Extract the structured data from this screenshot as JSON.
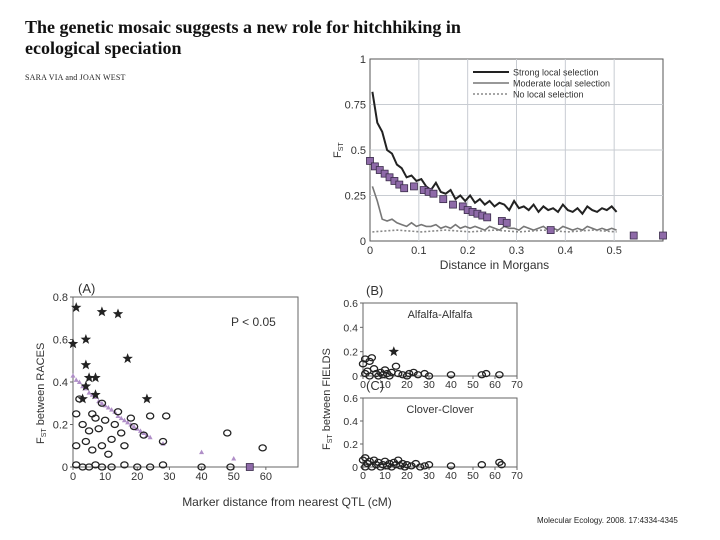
{
  "title": "The genetic mosaic suggests a new role for hitchhiking in ecological speciation",
  "authors": "SARA VIA and JOAN WEST",
  "citation": "Molecular Ecology. 2008. 17:4334-4345",
  "colors": {
    "purple": "#8e6aa8",
    "purple_light": "#b08fc8",
    "dark": "#222222",
    "moderate": "#777777",
    "grid": "#c8ccd2"
  },
  "chart_data": [
    {
      "type": "line",
      "ylabel_main": "F",
      "ylabel_sub": "ST",
      "xlabel": "Distance in Morgans",
      "xlim": [
        0,
        0.6
      ],
      "ylim": [
        0,
        1
      ],
      "xticks": [
        "0",
        "0.1",
        "0.2",
        "0.3",
        "0.4",
        "0.5"
      ],
      "yticks": [
        "0",
        "0.25",
        "0.5",
        "0.75",
        "1"
      ],
      "grid": true,
      "legend_position": "top-right",
      "series": [
        {
          "name": "Strong local selection",
          "style": "solid-dark",
          "x": [
            0.005,
            0.015,
            0.025,
            0.035,
            0.045,
            0.055,
            0.065,
            0.075,
            0.085,
            0.095,
            0.105,
            0.115,
            0.125,
            0.135,
            0.145,
            0.155,
            0.165,
            0.175,
            0.185,
            0.195,
            0.205,
            0.215,
            0.225,
            0.235,
            0.245,
            0.255,
            0.265,
            0.275,
            0.285,
            0.295,
            0.305,
            0.315,
            0.325,
            0.335,
            0.345,
            0.355,
            0.365,
            0.375,
            0.385,
            0.395,
            0.405,
            0.415,
            0.425,
            0.435,
            0.445,
            0.455,
            0.465,
            0.475,
            0.485,
            0.495,
            0.505
          ],
          "y": [
            0.82,
            0.65,
            0.6,
            0.5,
            0.48,
            0.42,
            0.4,
            0.35,
            0.36,
            0.33,
            0.34,
            0.3,
            0.28,
            0.32,
            0.27,
            0.26,
            0.28,
            0.23,
            0.25,
            0.22,
            0.25,
            0.21,
            0.23,
            0.2,
            0.22,
            0.19,
            0.21,
            0.2,
            0.17,
            0.22,
            0.18,
            0.19,
            0.17,
            0.2,
            0.16,
            0.19,
            0.17,
            0.18,
            0.16,
            0.2,
            0.17,
            0.16,
            0.18,
            0.15,
            0.19,
            0.17,
            0.16,
            0.18,
            0.17,
            0.19,
            0.16
          ]
        },
        {
          "name": "Moderate local selection",
          "style": "solid-gray",
          "x": [
            0.005,
            0.015,
            0.025,
            0.035,
            0.045,
            0.055,
            0.065,
            0.075,
            0.085,
            0.095,
            0.105,
            0.115,
            0.125,
            0.135,
            0.145,
            0.155,
            0.165,
            0.175,
            0.185,
            0.195,
            0.205,
            0.215,
            0.225,
            0.235,
            0.245,
            0.255,
            0.265,
            0.275,
            0.285,
            0.295,
            0.305,
            0.315,
            0.325,
            0.335,
            0.345,
            0.355,
            0.365,
            0.375,
            0.385,
            0.395,
            0.405,
            0.415,
            0.425,
            0.435,
            0.445,
            0.455,
            0.465,
            0.475,
            0.485,
            0.495,
            0.505
          ],
          "y": [
            0.3,
            0.22,
            0.12,
            0.11,
            0.12,
            0.1,
            0.09,
            0.08,
            0.1,
            0.08,
            0.09,
            0.08,
            0.08,
            0.09,
            0.07,
            0.08,
            0.07,
            0.09,
            0.07,
            0.08,
            0.07,
            0.08,
            0.07,
            0.06,
            0.08,
            0.07,
            0.06,
            0.08,
            0.07,
            0.07,
            0.06,
            0.08,
            0.07,
            0.06,
            0.07,
            0.08,
            0.06,
            0.07,
            0.06,
            0.08,
            0.07,
            0.06,
            0.07,
            0.06,
            0.08,
            0.07,
            0.06,
            0.07,
            0.06,
            0.07,
            0.06
          ]
        },
        {
          "name": "No local selection",
          "style": "dotted",
          "x": [
            0.005,
            0.055,
            0.105,
            0.155,
            0.205,
            0.255,
            0.305,
            0.355,
            0.405,
            0.455,
            0.505
          ],
          "y": [
            0.05,
            0.06,
            0.05,
            0.06,
            0.05,
            0.06,
            0.05,
            0.06,
            0.05,
            0.06,
            0.05
          ]
        },
        {
          "name": "",
          "style": "squares",
          "x": [
            0.0,
            0.01,
            0.02,
            0.03,
            0.04,
            0.05,
            0.06,
            0.07,
            0.09,
            0.11,
            0.12,
            0.13,
            0.15,
            0.17,
            0.19,
            0.2,
            0.21,
            0.22,
            0.23,
            0.24,
            0.27,
            0.28,
            0.37,
            0.54,
            0.6
          ],
          "y": [
            0.44,
            0.41,
            0.39,
            0.37,
            0.35,
            0.33,
            0.31,
            0.29,
            0.3,
            0.28,
            0.27,
            0.26,
            0.23,
            0.2,
            0.19,
            0.17,
            0.16,
            0.15,
            0.14,
            0.13,
            0.11,
            0.1,
            0.06,
            0.03,
            0.03
          ]
        }
      ]
    },
    {
      "type": "scatter",
      "panel_label": "(A)",
      "annotation": "P < 0.05",
      "ylabel_main": "F",
      "ylabel_sub": "ST",
      "ylabel_rest": " between RACES",
      "xlabel": "Marker distance from nearest QTL (cM)",
      "xlim": [
        0,
        70
      ],
      "ylim": [
        0,
        0.8
      ],
      "xticks": [
        "0",
        "10",
        "20",
        "30",
        "40",
        "50",
        "60"
      ],
      "yticks": [
        "0",
        "0.2",
        "0.4",
        "0.6",
        "0.8"
      ],
      "grid": false,
      "series": [
        {
          "marker": "star",
          "points": [
            [
              1,
              0.75
            ],
            [
              0,
              0.58
            ],
            [
              4,
              0.6
            ],
            [
              4,
              0.48
            ],
            [
              5,
              0.42
            ],
            [
              9,
              0.73
            ],
            [
              14,
              0.72
            ],
            [
              4,
              0.38
            ],
            [
              7,
              0.42
            ],
            [
              17,
              0.51
            ],
            [
              23,
              0.32
            ],
            [
              7,
              0.34
            ],
            [
              3,
              0.32
            ]
          ]
        },
        {
          "marker": "circle",
          "points": [
            [
              1,
              0.25
            ],
            [
              1,
              0.1
            ],
            [
              2,
              0.32
            ],
            [
              3,
              0.2
            ],
            [
              4,
              0.12
            ],
            [
              5,
              0.17
            ],
            [
              6,
              0.25
            ],
            [
              6,
              0.08
            ],
            [
              7,
              0.23
            ],
            [
              8,
              0.18
            ],
            [
              9,
              0.3
            ],
            [
              9,
              0.1
            ],
            [
              10,
              0.22
            ],
            [
              11,
              0.06
            ],
            [
              12,
              0.13
            ],
            [
              13,
              0.2
            ],
            [
              14,
              0.26
            ],
            [
              15,
              0.16
            ],
            [
              16,
              0.1
            ],
            [
              18,
              0.23
            ],
            [
              19,
              0.19
            ],
            [
              22,
              0.15
            ],
            [
              24,
              0.24
            ],
            [
              29,
              0.24
            ],
            [
              28,
              0.12
            ],
            [
              48,
              0.16
            ],
            [
              59,
              0.09
            ],
            [
              1,
              0.01
            ],
            [
              3,
              0.0
            ],
            [
              5,
              0.0
            ],
            [
              7,
              0.01
            ],
            [
              9,
              0.0
            ],
            [
              12,
              0.0
            ],
            [
              16,
              0.01
            ],
            [
              20,
              0.0
            ],
            [
              24,
              0.0
            ],
            [
              28,
              0.01
            ],
            [
              40,
              0.0
            ],
            [
              49,
              0.0
            ]
          ]
        },
        {
          "marker": "triangle",
          "points": [
            [
              0,
              0.43
            ],
            [
              1,
              0.41
            ],
            [
              2,
              0.4
            ],
            [
              3,
              0.38
            ],
            [
              4,
              0.37
            ],
            [
              5,
              0.35
            ],
            [
              6,
              0.34
            ],
            [
              7,
              0.33
            ],
            [
              8,
              0.31
            ],
            [
              9,
              0.3
            ],
            [
              10,
              0.29
            ],
            [
              11,
              0.28
            ],
            [
              12,
              0.27
            ],
            [
              13,
              0.26
            ],
            [
              14,
              0.24
            ],
            [
              15,
              0.23
            ],
            [
              16,
              0.22
            ],
            [
              17,
              0.21
            ],
            [
              18,
              0.2
            ],
            [
              19,
              0.19
            ],
            [
              20,
              0.18
            ],
            [
              21,
              0.17
            ],
            [
              22,
              0.16
            ],
            [
              23,
              0.15
            ],
            [
              24,
              0.14
            ],
            [
              28,
              0.11
            ],
            [
              40,
              0.07
            ],
            [
              50,
              0.04
            ]
          ]
        },
        {
          "marker": "square",
          "points": [
            [
              55,
              0.0
            ]
          ]
        }
      ]
    },
    {
      "type": "scatter",
      "panel_label": "(B)",
      "annotation": "Alfalfa-Alfalfa",
      "xlim": [
        0,
        70
      ],
      "ylim": [
        0,
        0.6
      ],
      "xticks": [
        "0",
        "10",
        "20",
        "30",
        "40",
        "50",
        "60",
        "70"
      ],
      "yticks": [
        "0",
        "0.2",
        "0.4",
        "0.6"
      ],
      "series": [
        {
          "marker": "star",
          "points": [
            [
              14,
              0.2
            ]
          ]
        },
        {
          "marker": "circle",
          "points": [
            [
              0,
              0.1
            ],
            [
              1,
              0.14
            ],
            [
              1,
              0.02
            ],
            [
              2,
              0.04
            ],
            [
              3,
              0.12
            ],
            [
              3,
              0.0
            ],
            [
              4,
              0.15
            ],
            [
              5,
              0.06
            ],
            [
              6,
              0.02
            ],
            [
              7,
              0.0
            ],
            [
              8,
              0.03
            ],
            [
              9,
              0.01
            ],
            [
              10,
              0.05
            ],
            [
              11,
              0.02
            ],
            [
              12,
              0.0
            ],
            [
              13,
              0.03
            ],
            [
              15,
              0.08
            ],
            [
              16,
              0.02
            ],
            [
              18,
              0.01
            ],
            [
              20,
              0.0
            ],
            [
              21,
              0.02
            ],
            [
              23,
              0.03
            ],
            [
              25,
              0.01
            ],
            [
              28,
              0.02
            ],
            [
              30,
              0.0
            ],
            [
              40,
              0.01
            ],
            [
              54,
              0.01
            ],
            [
              56,
              0.02
            ],
            [
              62,
              0.01
            ]
          ]
        }
      ]
    },
    {
      "type": "scatter",
      "panel_label": "(C)",
      "annotation": "Clover-Clover",
      "ylabel_main": "F",
      "ylabel_sub": "ST",
      "ylabel_rest": " between FIELDS",
      "xlim": [
        0,
        70
      ],
      "ylim": [
        0,
        0.6
      ],
      "xticks": [
        "0",
        "10",
        "20",
        "30",
        "40",
        "50",
        "60",
        "70"
      ],
      "yticks": [
        "0",
        "0.2",
        "0.4",
        "0.6"
      ],
      "series": [
        {
          "marker": "circle",
          "points": [
            [
              0,
              0.06
            ],
            [
              1,
              0.08
            ],
            [
              1,
              0.0
            ],
            [
              2,
              0.03
            ],
            [
              3,
              0.05
            ],
            [
              4,
              0.0
            ],
            [
              5,
              0.06
            ],
            [
              6,
              0.02
            ],
            [
              7,
              0.04
            ],
            [
              8,
              0.0
            ],
            [
              9,
              0.02
            ],
            [
              10,
              0.05
            ],
            [
              11,
              0.01
            ],
            [
              12,
              0.03
            ],
            [
              13,
              0.0
            ],
            [
              14,
              0.04
            ],
            [
              15,
              0.02
            ],
            [
              16,
              0.06
            ],
            [
              17,
              0.01
            ],
            [
              18,
              0.03
            ],
            [
              19,
              0.0
            ],
            [
              20,
              0.02
            ],
            [
              22,
              0.01
            ],
            [
              24,
              0.03
            ],
            [
              26,
              0.0
            ],
            [
              28,
              0.01
            ],
            [
              30,
              0.02
            ],
            [
              40,
              0.01
            ],
            [
              54,
              0.02
            ],
            [
              62,
              0.04
            ],
            [
              63,
              0.02
            ]
          ]
        }
      ]
    }
  ]
}
